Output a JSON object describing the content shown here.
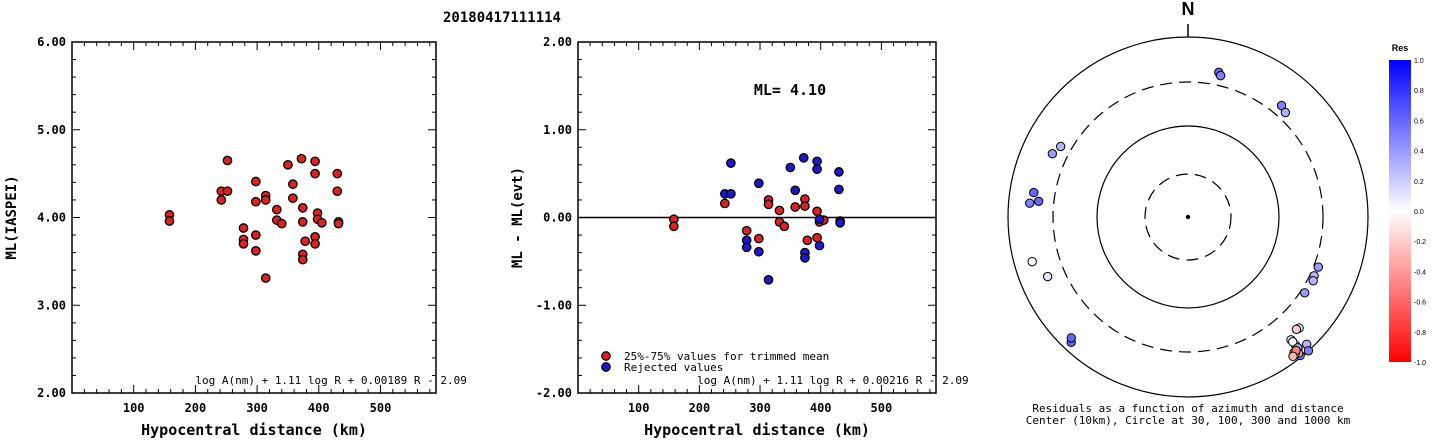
{
  "event_id": "20180417111114",
  "chart_data": [
    {
      "type": "scatter",
      "xlabel": "Hypocentral distance (km)",
      "ylabel": "ML(IASPEI)",
      "xlim": [
        0,
        590
      ],
      "ylim": [
        2.0,
        6.0
      ],
      "xticks": [
        "100",
        "200",
        "300",
        "400",
        "500"
      ],
      "xtick_values": [
        100,
        200,
        300,
        400,
        500
      ],
      "yticks": [
        "2.00",
        "3.00",
        "4.00",
        "5.00",
        "6.00"
      ],
      "ytick_values": [
        2,
        3,
        4,
        5,
        6
      ],
      "formula": "log A(nm) + 1.11 log R + 0.00189 R - 2.09",
      "color": "#dd2222",
      "points": [
        [
          158,
          4.03
        ],
        [
          158,
          3.96
        ],
        [
          242,
          4.3
        ],
        [
          242,
          4.2
        ],
        [
          252,
          4.65
        ],
        [
          252,
          4.3
        ],
        [
          278,
          3.88
        ],
        [
          278,
          3.75
        ],
        [
          278,
          3.7
        ],
        [
          298,
          4.41
        ],
        [
          298,
          4.18
        ],
        [
          298,
          3.8
        ],
        [
          298,
          3.62
        ],
        [
          314,
          4.25
        ],
        [
          314,
          4.2
        ],
        [
          314,
          3.31
        ],
        [
          332,
          4.09
        ],
        [
          332,
          3.97
        ],
        [
          340,
          3.93
        ],
        [
          350,
          4.6
        ],
        [
          358,
          4.38
        ],
        [
          358,
          4.22
        ],
        [
          372,
          4.67
        ],
        [
          374,
          4.11
        ],
        [
          374,
          3.95
        ],
        [
          378,
          3.73
        ],
        [
          374,
          3.58
        ],
        [
          374,
          3.52
        ],
        [
          394,
          4.64
        ],
        [
          394,
          4.5
        ],
        [
          394,
          3.78
        ],
        [
          394,
          3.7
        ],
        [
          398,
          4.05
        ],
        [
          398,
          3.98
        ],
        [
          405,
          3.94
        ],
        [
          430,
          4.5
        ],
        [
          430,
          4.3
        ],
        [
          432,
          3.95
        ],
        [
          432,
          3.93
        ]
      ]
    },
    {
      "type": "scatter",
      "xlabel": "Hypocentral distance (km)",
      "ylabel": "ML - ML(evt)",
      "xlim": [
        0,
        590
      ],
      "ylim": [
        -2.0,
        2.0
      ],
      "xticks": [
        "100",
        "200",
        "300",
        "400",
        "500"
      ],
      "xtick_values": [
        100,
        200,
        300,
        400,
        500
      ],
      "yticks": [
        "-2.00",
        "-1.00",
        "0.00",
        "1.00",
        "2.00"
      ],
      "ytick_values": [
        -2,
        -1,
        0,
        1,
        2
      ],
      "annotation": "ML= 4.10",
      "formula": "log A(nm) + 1.11 log R + 0.00216 R - 2.09",
      "legend": [
        {
          "label": "25%-75% values for trimmed mean",
          "color": "#dd2222"
        },
        {
          "label": "Rejected values",
          "color": "#1a1acc"
        }
      ],
      "series": [
        {
          "color": "#dd2222",
          "points": [
            [
              158,
              -0.02
            ],
            [
              158,
              -0.1
            ],
            [
              242,
              0.16
            ],
            [
              278,
              -0.15
            ],
            [
              298,
              -0.24
            ],
            [
              314,
              0.2
            ],
            [
              314,
              0.15
            ],
            [
              332,
              0.08
            ],
            [
              332,
              -0.05
            ],
            [
              340,
              -0.1
            ],
            [
              358,
              0.12
            ],
            [
              374,
              0.21
            ],
            [
              374,
              0.13
            ],
            [
              378,
              -0.26
            ],
            [
              394,
              -0.23
            ],
            [
              394,
              0.07
            ],
            [
              398,
              -0.05
            ],
            [
              405,
              -0.03
            ],
            [
              432,
              -0.04
            ]
          ]
        },
        {
          "color": "#1a1acc",
          "points": [
            [
              242,
              0.27
            ],
            [
              252,
              0.62
            ],
            [
              252,
              0.27
            ],
            [
              278,
              -0.26
            ],
            [
              278,
              -0.34
            ],
            [
              298,
              0.39
            ],
            [
              298,
              -0.39
            ],
            [
              314,
              -0.71
            ],
            [
              350,
              0.57
            ],
            [
              358,
              0.31
            ],
            [
              372,
              0.68
            ],
            [
              374,
              -0.4
            ],
            [
              374,
              -0.46
            ],
            [
              394,
              0.64
            ],
            [
              394,
              0.55
            ],
            [
              398,
              -0.32
            ],
            [
              398,
              -0.02
            ],
            [
              430,
              0.52
            ],
            [
              430,
              0.32
            ],
            [
              432,
              -0.06
            ]
          ]
        }
      ]
    },
    {
      "type": "polar-scatter",
      "north_label": "N",
      "caption_line1": "Residuals as a function of azimuth and distance",
      "caption_line2": "Center (10km), Circle at 30, 100, 300 and 1000 km",
      "colorbar_title": "Res",
      "colorbar_ticks": [
        "1.0",
        "0.8",
        "0.6",
        "0.4",
        "0.2",
        "0.0",
        "-0.2",
        "-0.4",
        "-0.6",
        "-0.8",
        "-1.0"
      ],
      "colorbar_values": [
        1.0,
        0.8,
        0.6,
        0.4,
        0.2,
        0.0,
        -0.2,
        -0.4,
        -0.6,
        -0.8,
        -1.0
      ],
      "points": [
        [
          12,
          322,
          0.6
        ],
        [
          13,
          316,
          0.5
        ],
        [
          40,
          317,
          0.5
        ],
        [
          43,
          311,
          0.3
        ],
        [
          111,
          304,
          0.4
        ],
        [
          115,
          303,
          0.3
        ],
        [
          117,
          306,
          0.3
        ],
        [
          123,
          303,
          0.4
        ],
        [
          135,
          342,
          0.0
        ],
        [
          136,
          340,
          -0.2
        ],
        [
          137,
          379,
          0.3
        ],
        [
          138,
          392,
          0.5
        ],
        [
          140,
          349,
          0.1
        ],
        [
          140,
          364,
          0.0
        ],
        [
          140,
          355,
          0.0
        ],
        [
          140,
          373,
          -0.3
        ],
        [
          140,
          372,
          0.3
        ],
        [
          141,
          388,
          0.5
        ],
        [
          141,
          376,
          -0.4
        ],
        [
          141,
          382,
          -0.3
        ],
        [
          142,
          375,
          -0.4
        ],
        [
          142,
          379,
          -0.4
        ],
        [
          141,
          374,
          -0.5
        ],
        [
          143,
          380,
          -0.3
        ],
        [
          223,
          373,
          0.6
        ],
        [
          224,
          366,
          0.6
        ],
        [
          247,
          332,
          0.1
        ],
        [
          254,
          353,
          0.0
        ],
        [
          275,
          346,
          0.5
        ],
        [
          276,
          327,
          0.6
        ],
        [
          279,
          340,
          0.6
        ],
        [
          295,
          326,
          0.4
        ],
        [
          299,
          317,
          0.3
        ]
      ]
    }
  ]
}
